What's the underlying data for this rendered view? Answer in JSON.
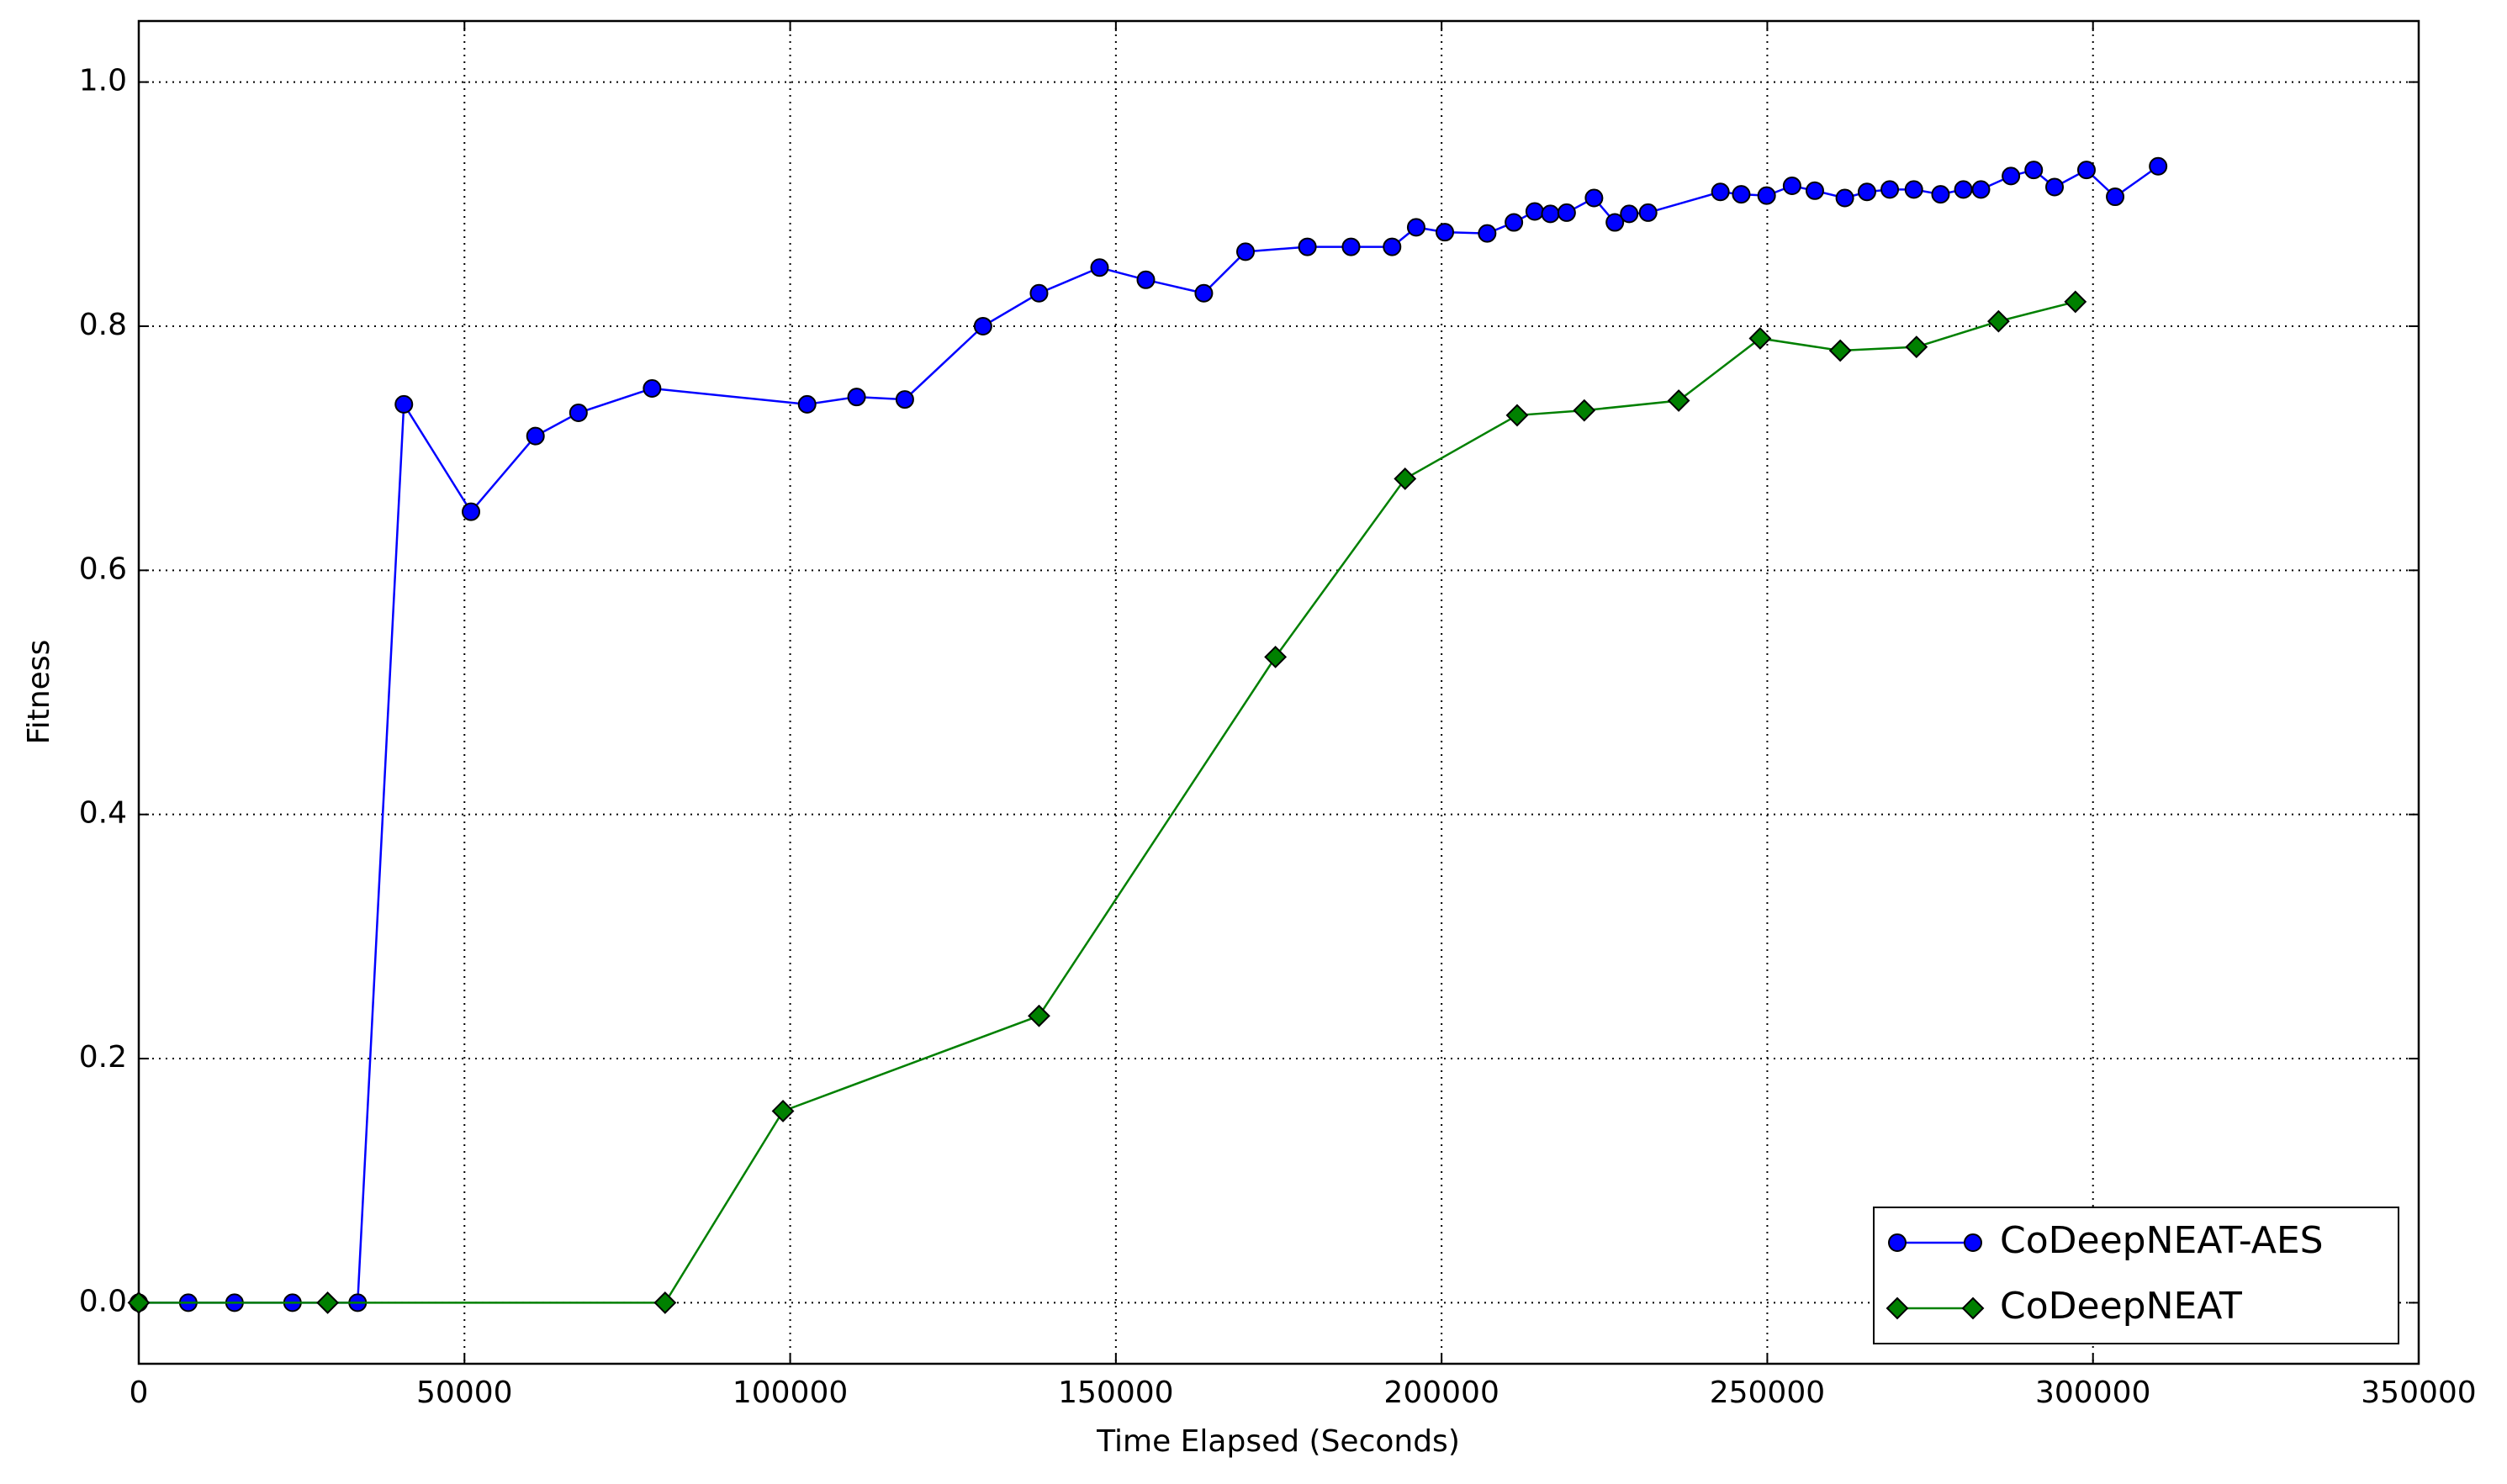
{
  "chart_data": {
    "type": "line",
    "xlabel": "Time Elapsed (Seconds)",
    "ylabel": "Fitness",
    "xlim": [
      0,
      350000
    ],
    "xticks": [
      0,
      50000,
      100000,
      150000,
      200000,
      250000,
      300000,
      350000
    ],
    "ylim": [
      -0.05,
      1.05
    ],
    "yticks": [
      {
        "value": 0,
        "label": "0.0"
      },
      0.2,
      0.4,
      0.6,
      0.8,
      {
        "value": 1,
        "label": "1.0"
      }
    ],
    "grid": true,
    "legend": "lower right",
    "series": [
      {
        "name": "CoDeepNEAT-AES",
        "color": "#0000ff",
        "marker": "circle",
        "x": [
          0,
          7600,
          14700,
          23600,
          33600,
          40700,
          51000,
          60900,
          67500,
          78800,
          102600,
          110200,
          117600,
          129600,
          138200,
          147500,
          154600,
          163500,
          169900,
          179400,
          186100,
          192400,
          196100,
          200500,
          207000,
          211100,
          214300,
          216700,
          219200,
          223400,
          226600,
          228800,
          231700,
          242800,
          246000,
          249900,
          253800,
          257300,
          261900,
          265300,
          268800,
          272500,
          276600,
          280100,
          282800,
          287400,
          290900,
          294100,
          299000,
          303400,
          310000
        ],
        "values": [
          0,
          0,
          0,
          0,
          0,
          0.736,
          0.648,
          0.71,
          0.729,
          0.749,
          0.736,
          0.742,
          0.74,
          0.8,
          0.827,
          0.848,
          0.838,
          0.827,
          0.861,
          0.865,
          0.865,
          0.865,
          0.881,
          0.877,
          0.876,
          0.885,
          0.894,
          0.892,
          0.893,
          0.905,
          0.885,
          0.892,
          0.893,
          0.91,
          0.908,
          0.907,
          0.915,
          0.911,
          0.905,
          0.91,
          0.912,
          0.912,
          0.908,
          0.912,
          0.912,
          0.923,
          0.928,
          0.914,
          0.928,
          0.906,
          0.931
        ]
      },
      {
        "name": "CoDeepNEAT",
        "color": "#008000",
        "marker": "diamond",
        "x": [
          0,
          29000,
          80800,
          98900,
          138200,
          174500,
          194400,
          211600,
          221900,
          236400,
          248900,
          261200,
          272900,
          285500,
          297300
        ],
        "values": [
          0,
          0,
          0,
          0.157,
          0.235,
          0.529,
          0.675,
          0.727,
          0.731,
          0.739,
          0.79,
          0.78,
          0.783,
          0.804,
          0.82
        ]
      }
    ]
  }
}
